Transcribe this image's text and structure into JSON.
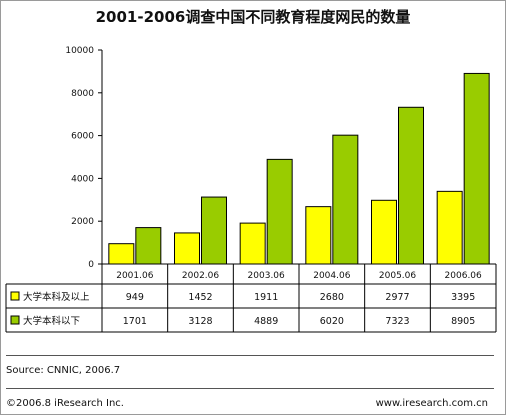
{
  "title": "2001-2006调查中国不同教育程度网民的数量",
  "source": "Source: CNNIC, 2006.7",
  "copyright": "©2006.8 iResearch Inc.",
  "website": "www.iresearch.com.cn",
  "colors": {
    "series1": "#ffff00",
    "series2": "#99cc00",
    "border": "#000000"
  },
  "chart_data": {
    "type": "bar",
    "title": "2001-2006调查中国不同教育程度网民的数量",
    "categories": [
      "2001.06",
      "2002.06",
      "2003.06",
      "2004.06",
      "2005.06",
      "2006.06"
    ],
    "series": [
      {
        "name": "大学本科及以上",
        "values": [
          949,
          1452,
          1911,
          2680,
          2977,
          3395
        ]
      },
      {
        "name": "大学本科以下",
        "values": [
          1701,
          3128,
          4889,
          6020,
          7323,
          8905
        ]
      }
    ],
    "yticks": [
      0,
      2000,
      4000,
      6000,
      8000,
      10000
    ],
    "ylim": [
      0,
      10000
    ],
    "grid": false,
    "legend": "data-table-left"
  }
}
